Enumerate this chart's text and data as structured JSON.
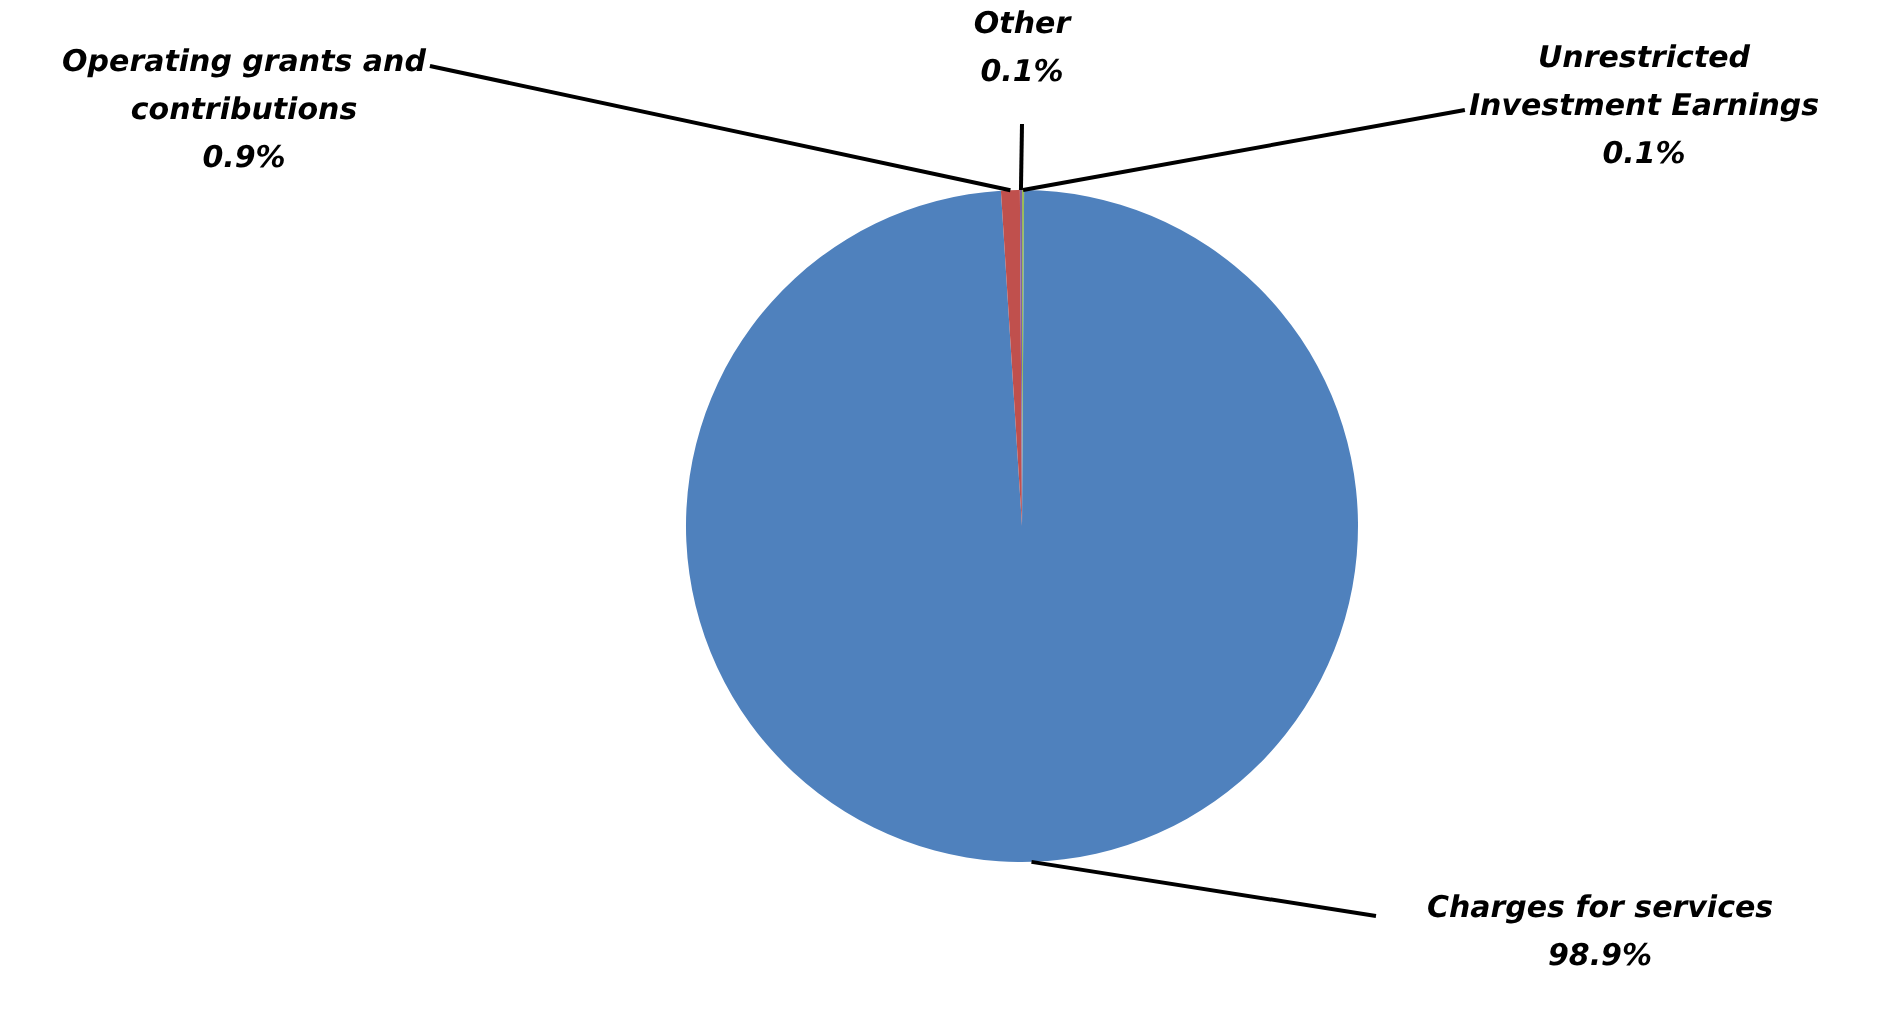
{
  "chart_data": {
    "type": "pie",
    "categories": [
      "Unrestricted Investment Earnings",
      "Charges for services",
      "Operating grants and contributions",
      "Other"
    ],
    "values": [
      0.1,
      98.9,
      0.9,
      0.1
    ],
    "colors": [
      "#9bbb59",
      "#4f81bd",
      "#c0504d",
      "#8064a2"
    ],
    "value_labels": [
      "0.1%",
      "98.9%",
      "0.9%",
      "0.1%"
    ],
    "legend": false
  }
}
